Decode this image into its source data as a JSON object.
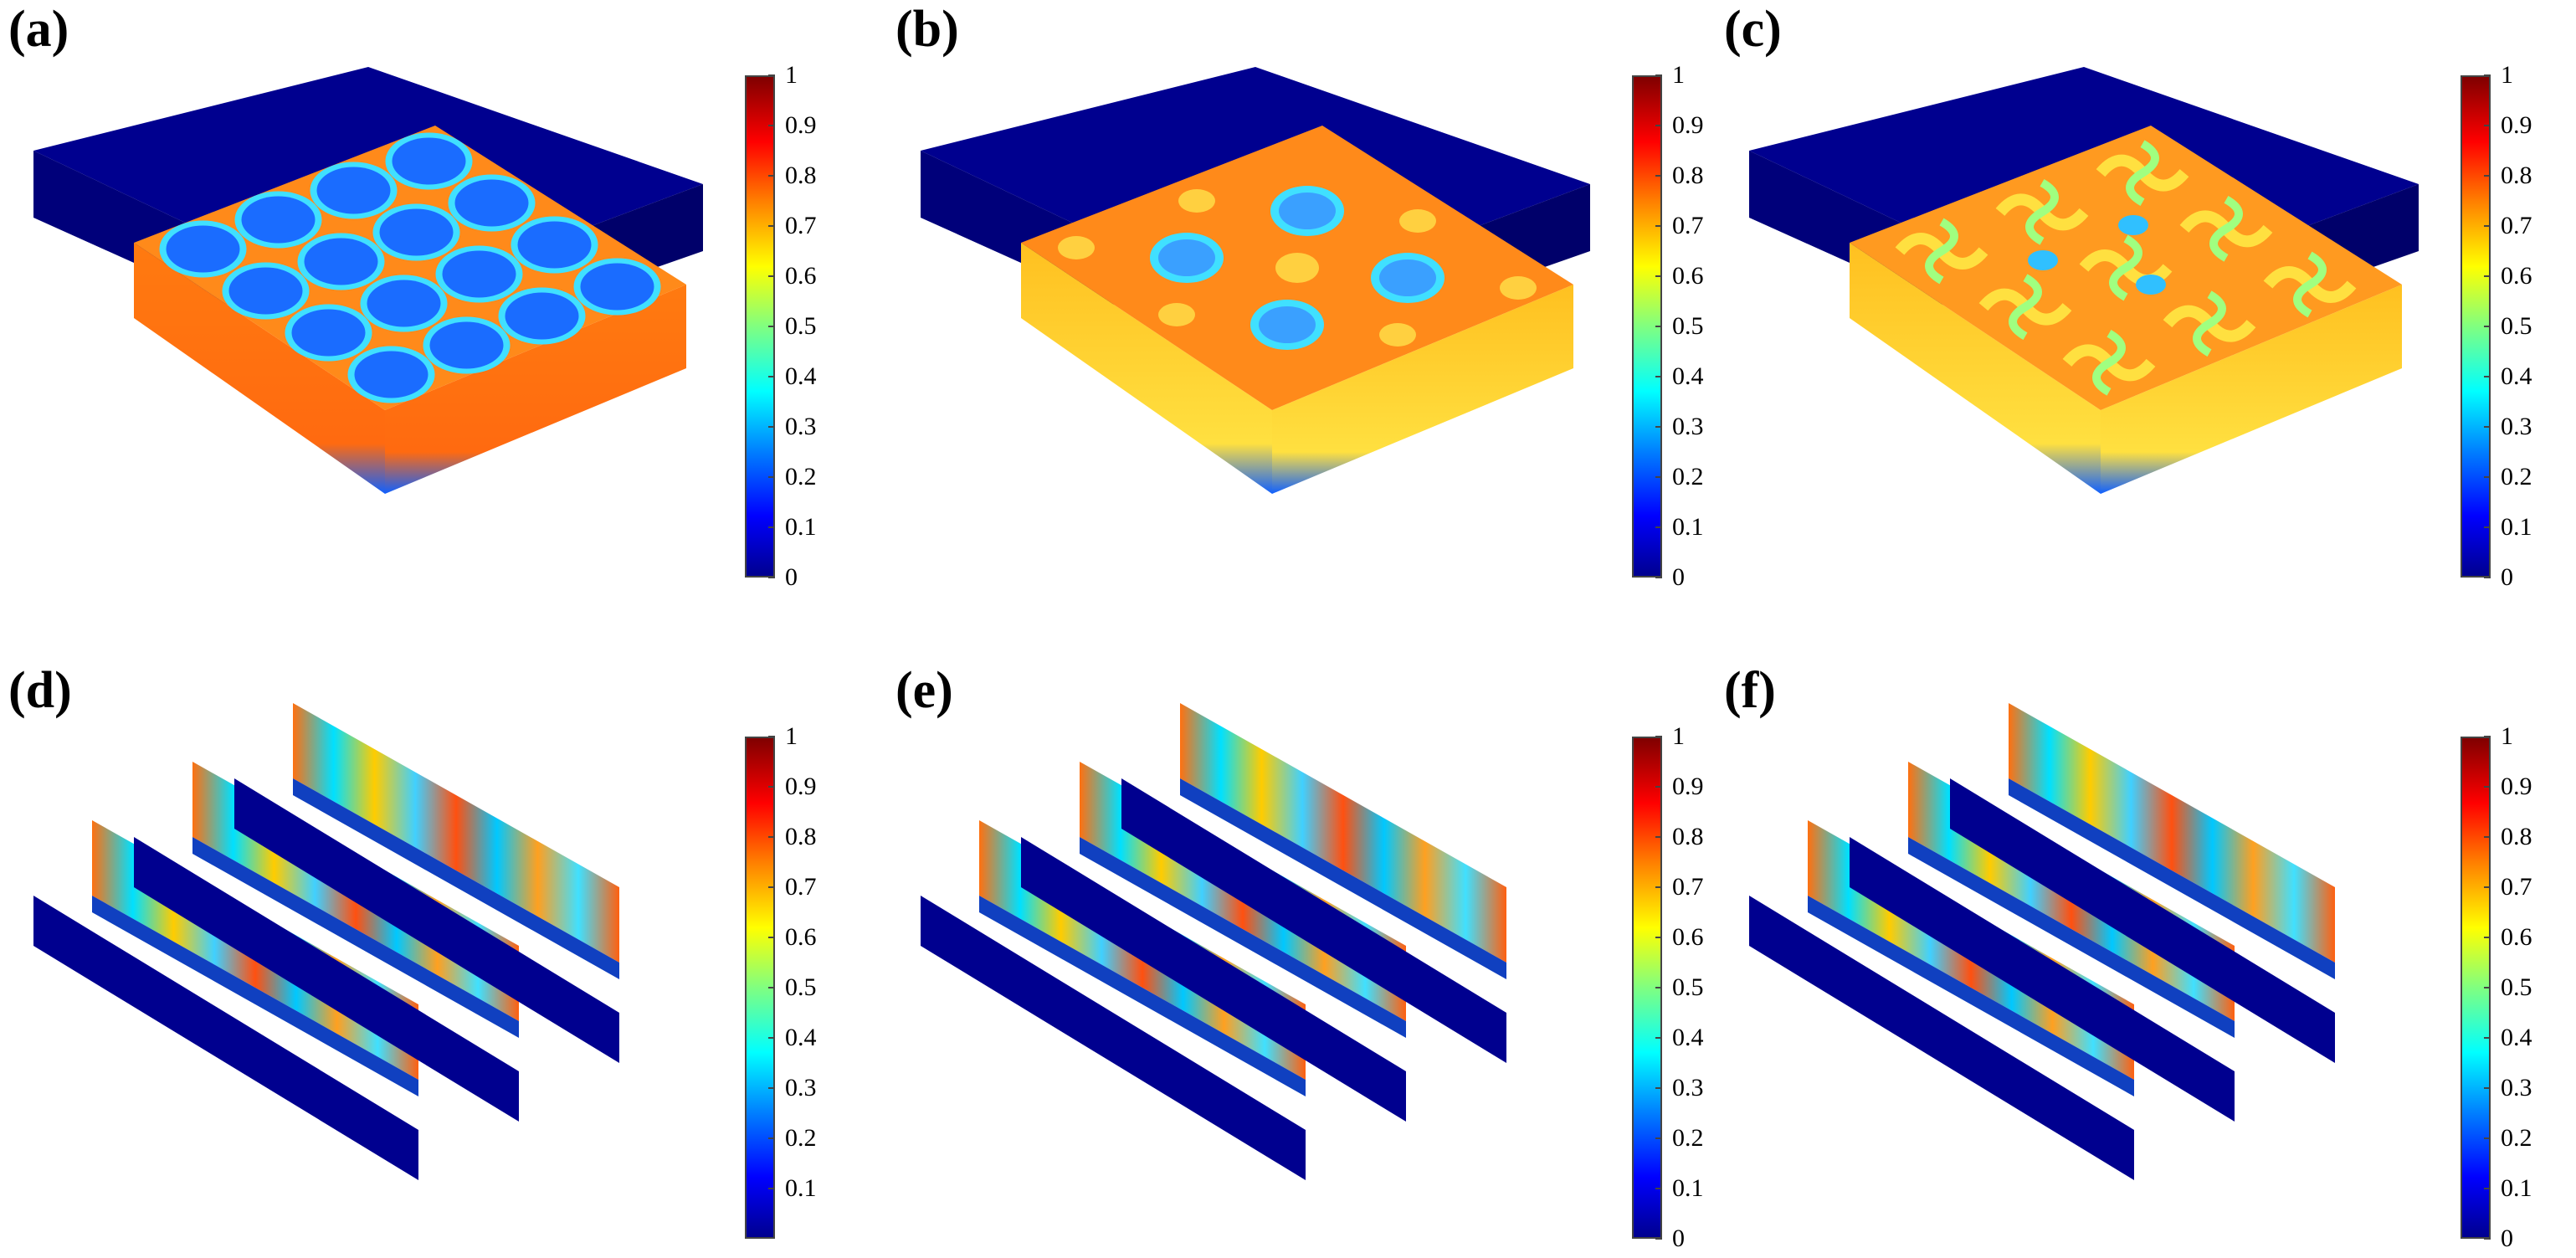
{
  "panels": [
    {
      "label": "(a)",
      "kind": "block",
      "pattern": "circles"
    },
    {
      "label": "(b)",
      "kind": "block",
      "pattern": "diamonds"
    },
    {
      "label": "(c)",
      "kind": "block",
      "pattern": "swirls"
    },
    {
      "label": "(d)",
      "kind": "slices",
      "pattern": "slices"
    },
    {
      "label": "(e)",
      "kind": "slices",
      "pattern": "slices"
    },
    {
      "label": "(f)",
      "kind": "slices",
      "pattern": "slices"
    }
  ],
  "colorbar": {
    "ticks_full": [
      "1",
      "0.9",
      "0.8",
      "0.7",
      "0.6",
      "0.5",
      "0.4",
      "0.3",
      "0.2",
      "0.1",
      "0"
    ],
    "ticks_d": [
      "1",
      "0.9",
      "0.8",
      "0.7",
      "0.6",
      "0.5",
      "0.4",
      "0.3",
      "0.2",
      "0.1"
    ],
    "colormap": [
      "#00008f",
      "#0000ff",
      "#0080ff",
      "#00ffff",
      "#80ff80",
      "#ffff00",
      "#ff8000",
      "#ff0000",
      "#800000"
    ]
  },
  "colors": {
    "substrate": "#00008f",
    "film_top": "#ff8c1a",
    "film_side": "#ff7a10",
    "spot": "#1a6cff",
    "spot_rim": "#40e0ff"
  }
}
